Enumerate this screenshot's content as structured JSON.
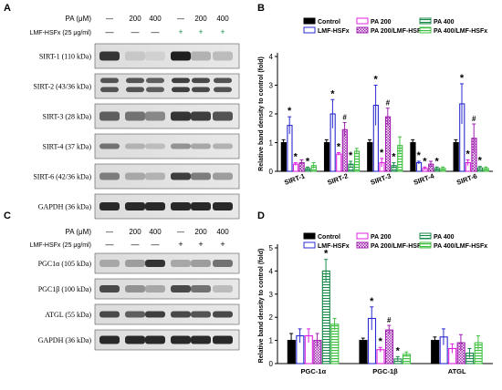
{
  "panels": {
    "A": {
      "letter": "A",
      "header": {
        "row1_label": "PA (μM)",
        "row2_label": "LMF-HSFx (25 μg/ml)",
        "pa": [
          "—",
          "200",
          "400",
          "—",
          "200",
          "400"
        ],
        "lmf": [
          "—",
          "—",
          "—",
          "+",
          "+",
          "+"
        ]
      },
      "blots": [
        "SIRT-1 (110 kDa)",
        "SIRT-2 (43/36 kDa)",
        "SIRT-3 (28 kDa)",
        "SIRT-4 (37 kDa)",
        "SIRT-6 (42/36 kDa)",
        "GAPDH (36 kDa)"
      ]
    },
    "C": {
      "letter": "C",
      "header": {
        "row1_label": "PA (μM)",
        "row2_label": "LMF-HSFx (25 μg/ml)",
        "pa": [
          "—",
          "200",
          "400",
          "—",
          "200",
          "400"
        ],
        "lmf": [
          "—",
          "—",
          "—",
          "+",
          "+",
          "+"
        ]
      },
      "blots": [
        "PGC1α (105 kDa)",
        "PGC1β (100 kDa)",
        "ATGL (55 kDa)",
        "GAPDH (36 kDa)"
      ]
    }
  },
  "legend_colors": {
    "Control": "#000000",
    "PA 200": "#e020e0",
    "PA 400": "#1a8a4a",
    "LMF-HSFx": "#2a2ad0",
    "PA 200/LMF-HSFx": "#a020b0",
    "PA 400/LMF-HSFx": "#40c040"
  },
  "chart_data": [
    {
      "panel": "B",
      "type": "bar",
      "ylabel": "Relative band density to control (fold)",
      "ylim": [
        0,
        4
      ],
      "yticks": [
        0,
        1,
        2,
        3,
        4
      ],
      "categories": [
        "SIRT-1",
        "SIRT-2",
        "SIRT-3",
        "SIRT-4",
        "SIRT-6"
      ],
      "legend": [
        "Control",
        "PA 200",
        "PA 400",
        "LMF-HSFx",
        "PA 200/LMF-HSFx",
        "PA 400/LMF-HSFx"
      ],
      "legend_placement": "top",
      "series": [
        {
          "name": "Control",
          "values": [
            1.0,
            1.0,
            1.0,
            1.0,
            1.0
          ],
          "errors": [
            0.1,
            0.1,
            0.1,
            0.1,
            0.1
          ]
        },
        {
          "name": "LMF-HSFx",
          "values": [
            1.6,
            2.0,
            2.3,
            0.3,
            2.35
          ],
          "errors": [
            0.3,
            0.5,
            0.7,
            0.05,
            0.7
          ]
        },
        {
          "name": "PA 200",
          "values": [
            0.25,
            0.6,
            0.3,
            0.1,
            0.3
          ],
          "errors": [
            0.05,
            0.05,
            0.15,
            0.05,
            0.1
          ]
        },
        {
          "name": "PA 200/LMF-HSFx",
          "values": [
            0.3,
            1.45,
            1.9,
            0.25,
            1.15
          ],
          "errors": [
            0.1,
            0.25,
            0.3,
            0.1,
            0.5
          ]
        },
        {
          "name": "PA 400",
          "values": [
            0.1,
            0.25,
            0.2,
            0.1,
            0.12
          ],
          "errors": [
            0.05,
            0.1,
            0.1,
            0.05,
            0.05
          ]
        },
        {
          "name": "PA 400/LMF-HSFx",
          "values": [
            0.2,
            0.7,
            0.9,
            0.1,
            0.1
          ],
          "errors": [
            0.1,
            0.1,
            0.3,
            0.05,
            0.05
          ]
        }
      ],
      "annotations": [
        {
          "category": "SIRT-1",
          "series": "LMF-HSFx",
          "text": "*"
        },
        {
          "category": "SIRT-1",
          "series": "PA 200",
          "text": "*"
        },
        {
          "category": "SIRT-1",
          "series": "PA 400",
          "text": "*"
        },
        {
          "category": "SIRT-2",
          "series": "LMF-HSFx",
          "text": "*"
        },
        {
          "category": "SIRT-2",
          "series": "PA 200",
          "text": "*"
        },
        {
          "category": "SIRT-2",
          "series": "PA 200/LMF-HSFx",
          "text": "#"
        },
        {
          "category": "SIRT-2",
          "series": "PA 400",
          "text": "*"
        },
        {
          "category": "SIRT-3",
          "series": "LMF-HSFx",
          "text": "*"
        },
        {
          "category": "SIRT-3",
          "series": "PA 200",
          "text": "*"
        },
        {
          "category": "SIRT-3",
          "series": "PA 200/LMF-HSFx",
          "text": "#"
        },
        {
          "category": "SIRT-3",
          "series": "PA 400",
          "text": "*"
        },
        {
          "category": "SIRT-4",
          "series": "LMF-HSFx",
          "text": "*"
        },
        {
          "category": "SIRT-4",
          "series": "PA 200",
          "text": "*"
        },
        {
          "category": "SIRT-4",
          "series": "PA 400",
          "text": "*"
        },
        {
          "category": "SIRT-6",
          "series": "LMF-HSFx",
          "text": "*"
        },
        {
          "category": "SIRT-6",
          "series": "PA 200",
          "text": "*"
        },
        {
          "category": "SIRT-6",
          "series": "PA 200/LMF-HSFx",
          "text": "#"
        },
        {
          "category": "SIRT-6",
          "series": "PA 400",
          "text": "*"
        }
      ]
    },
    {
      "panel": "D",
      "type": "bar",
      "ylabel": "Relative band density to control (fold)",
      "ylim": [
        0,
        5
      ],
      "yticks": [
        0,
        1,
        2,
        3,
        4,
        5
      ],
      "categories": [
        "PGC-1α",
        "PGC-1β",
        "ATGL"
      ],
      "legend": [
        "Control",
        "PA 200",
        "PA 400",
        "LMF-HSFx",
        "PA 200/LMF-HSFx",
        "PA 400/LMF-HSFx"
      ],
      "legend_placement": "top",
      "series": [
        {
          "name": "Control",
          "values": [
            1.0,
            1.0,
            1.0
          ],
          "errors": [
            0.3,
            0.1,
            0.15
          ]
        },
        {
          "name": "LMF-HSFx",
          "values": [
            1.2,
            1.95,
            1.15
          ],
          "errors": [
            0.3,
            0.5,
            0.35
          ]
        },
        {
          "name": "PA 200",
          "values": [
            1.2,
            0.6,
            0.65
          ],
          "errors": [
            0.3,
            0.1,
            0.2
          ]
        },
        {
          "name": "PA 200/LMF-HSFx",
          "values": [
            1.0,
            1.45,
            0.9
          ],
          "errors": [
            0.3,
            0.2,
            0.35
          ]
        },
        {
          "name": "PA 400",
          "values": [
            4.0,
            0.2,
            0.45
          ],
          "errors": [
            0.5,
            0.1,
            0.2
          ]
        },
        {
          "name": "PA 400/LMF-HSFx",
          "values": [
            1.7,
            0.4,
            0.9
          ],
          "errors": [
            0.25,
            0.1,
            0.3
          ]
        }
      ],
      "annotations": [
        {
          "category": "PGC-1α",
          "series": "PA 400",
          "text": "*"
        },
        {
          "category": "PGC-1β",
          "series": "LMF-HSFx",
          "text": "*"
        },
        {
          "category": "PGC-1β",
          "series": "PA 200",
          "text": "*"
        },
        {
          "category": "PGC-1β",
          "series": "PA 200/LMF-HSFx",
          "text": "#"
        },
        {
          "category": "PGC-1β",
          "series": "PA 400",
          "text": "*"
        }
      ]
    }
  ]
}
